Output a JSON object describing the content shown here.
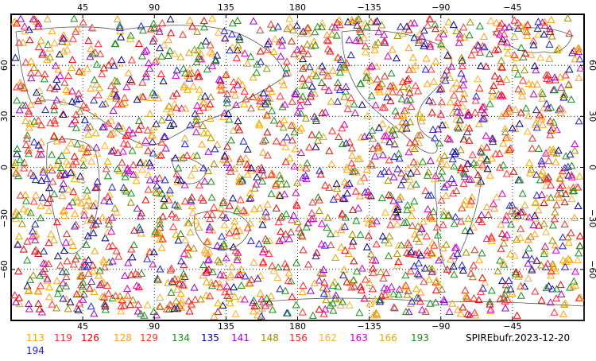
{
  "map": {
    "title_label": "SPIREbufr.2023-12-20",
    "projection": "cylindrical",
    "center_longitude": 180,
    "lon_ticks": [
      "45",
      "90",
      "135",
      "180",
      "−135",
      "−90",
      "−45"
    ],
    "lat_ticks": [
      "60",
      "30",
      "0",
      "−30",
      "−60"
    ],
    "grid": "dotted",
    "marker_shape": "open triangle"
  },
  "legend": {
    "entries": [
      {
        "label": "113",
        "color": "#ffa500"
      },
      {
        "label": "119",
        "color": "#ff2a2a"
      },
      {
        "label": "126",
        "color": "#e60000"
      },
      {
        "label": "128",
        "color": "#ff9f1a"
      },
      {
        "label": "129",
        "color": "#ff3333"
      },
      {
        "label": "134",
        "color": "#1a8c1a"
      },
      {
        "label": "135",
        "color": "#000080"
      },
      {
        "label": "141",
        "color": "#9900cc"
      },
      {
        "label": "148",
        "color": "#a08c00"
      },
      {
        "label": "156",
        "color": "#ff2020"
      },
      {
        "label": "162",
        "color": "#ffb033"
      },
      {
        "label": "163",
        "color": "#cc00cc"
      },
      {
        "label": "166",
        "color": "#e6a800"
      },
      {
        "label": "193",
        "color": "#1a8c1a"
      },
      {
        "label": "194",
        "color": "#2020cc"
      }
    ]
  }
}
